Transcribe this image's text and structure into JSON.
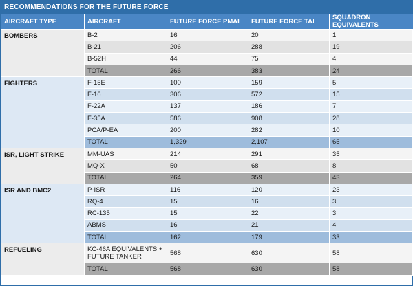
{
  "title": "RECOMMENDATIONS FOR THE FUTURE FORCE",
  "columns": [
    "AIRCRAFT TYPE",
    "AIRCRAFT",
    "FUTURE FORCE PMAI",
    "FUTURE FORCE TAI",
    "SQUADRON EQUIVALENTS"
  ],
  "groups": [
    {
      "type": "BOMBERS",
      "rows": [
        [
          "B-2",
          "16",
          "20",
          "1"
        ],
        [
          "B-21",
          "206",
          "288",
          "19"
        ],
        [
          "B-52H",
          "44",
          "75",
          "4"
        ],
        [
          "TOTAL",
          "266",
          "383",
          "24"
        ]
      ]
    },
    {
      "type": "FIGHTERS",
      "rows": [
        [
          "F-15E",
          "100",
          "159",
          "5"
        ],
        [
          "F-16",
          "306",
          "572",
          "15"
        ],
        [
          "F-22A",
          "137",
          "186",
          "7"
        ],
        [
          "F-35A",
          "586",
          "908",
          "28"
        ],
        [
          "PCA/P-EA",
          "200",
          "282",
          "10"
        ],
        [
          "TOTAL",
          "1,329",
          "2,107",
          "65"
        ]
      ]
    },
    {
      "type": "ISR, LIGHT STRIKE",
      "rows": [
        [
          "MM-UAS",
          "214",
          "291",
          "35"
        ],
        [
          "MQ-X",
          "50",
          "68",
          "8"
        ],
        [
          "TOTAL",
          "264",
          "359",
          "43"
        ]
      ]
    },
    {
      "type": "ISR AND BMC2",
      "rows": [
        [
          "P-ISR",
          "116",
          "120",
          "23"
        ],
        [
          "RQ-4",
          "15",
          "16",
          "3"
        ],
        [
          "RC-135",
          "15",
          "22",
          "3"
        ],
        [
          "ABMS",
          "16",
          "21",
          "4"
        ],
        [
          "TOTAL",
          "162",
          "179",
          "33"
        ]
      ]
    },
    {
      "type": "REFUELING",
      "rows": [
        [
          "KC-46A EQUIVALENTS + FUTURE TANKER",
          "568",
          "630",
          "58"
        ],
        [
          "TOTAL",
          "568",
          "630",
          "58"
        ]
      ]
    }
  ]
}
